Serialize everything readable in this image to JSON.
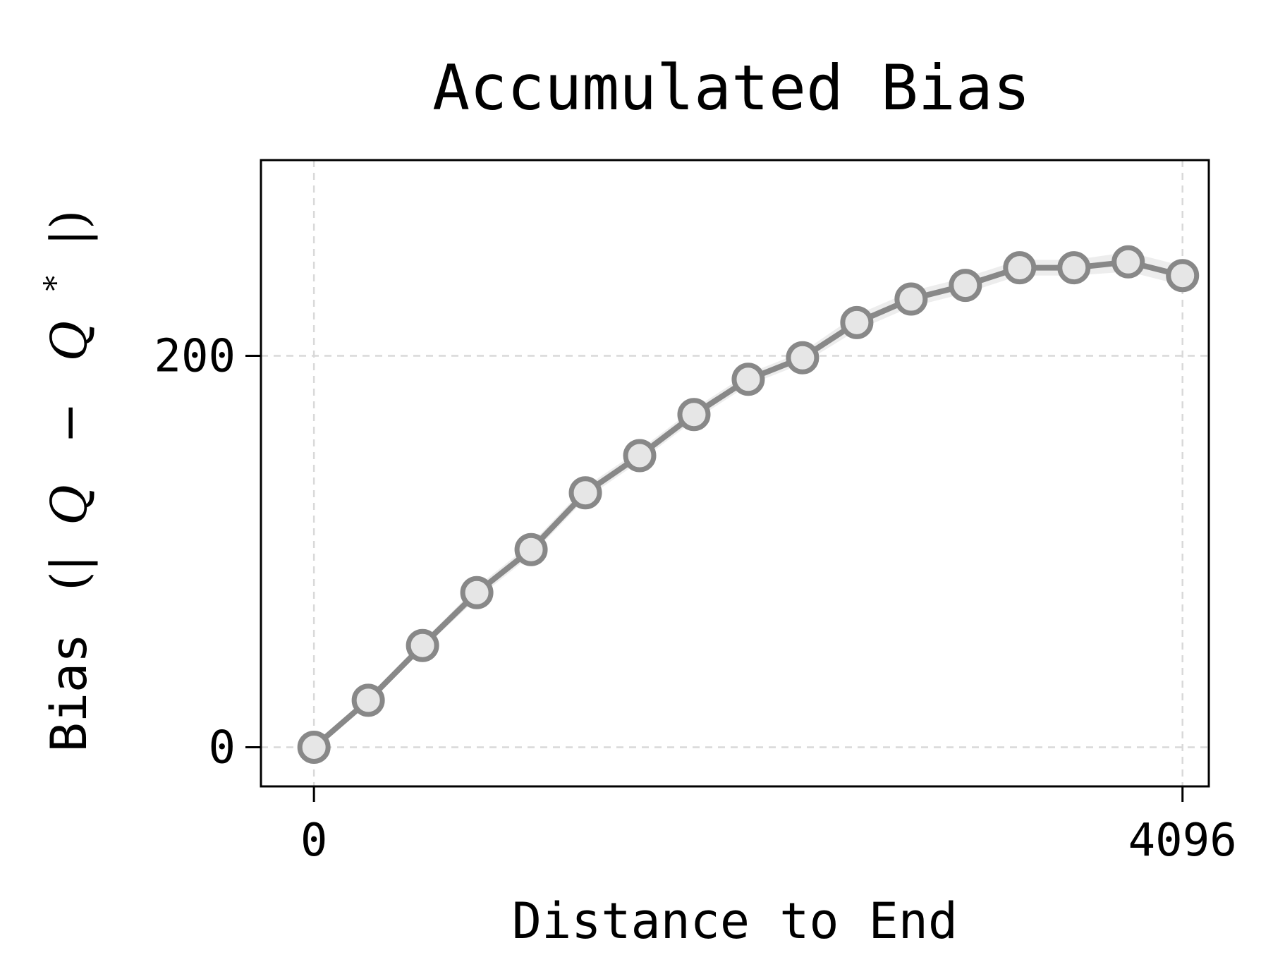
{
  "chart_data": {
    "type": "line",
    "title": "Accumulated Bias",
    "xlabel": "Distance to End",
    "ylabel": {
      "prefix": "Bias",
      "open": "(|",
      "q": "Q",
      "minus": "−",
      "star": "*",
      "close": "|)"
    },
    "xlim": [
      -250,
      4220
    ],
    "ylim": [
      -20,
      300
    ],
    "x_ticks": [
      {
        "value": 0,
        "label": "0"
      },
      {
        "value": 4096,
        "label": "4096"
      }
    ],
    "y_ticks": [
      {
        "value": 0,
        "label": "0"
      },
      {
        "value": 200,
        "label": "200"
      }
    ],
    "grid": true,
    "series": [
      {
        "color": "#888888",
        "marker_fill": "#e6e6e6",
        "band_color": "#cccccc",
        "x": [
          0,
          256,
          512,
          768,
          1024,
          1280,
          1536,
          1792,
          2048,
          2304,
          2560,
          2816,
          3072,
          3328,
          3584,
          3840,
          4096
        ],
        "y": [
          0,
          24,
          52,
          79,
          101,
          130,
          149,
          170,
          188,
          199,
          217,
          229,
          236,
          245,
          245,
          248,
          241
        ],
        "band": [
          1,
          2,
          2,
          3,
          3,
          3,
          3,
          3,
          3,
          3,
          4,
          4,
          4,
          4,
          4,
          5,
          5
        ]
      }
    ]
  }
}
